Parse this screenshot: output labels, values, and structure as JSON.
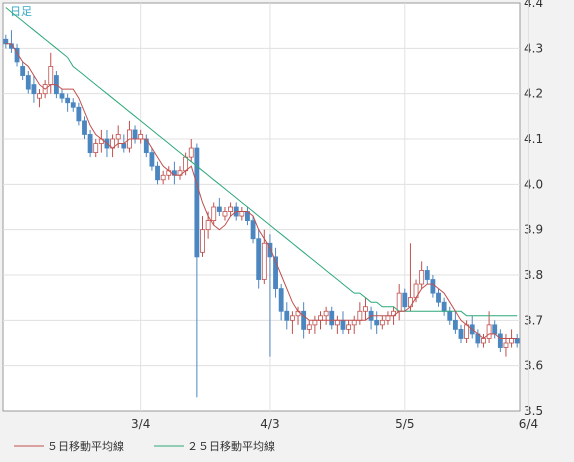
{
  "chart_data": {
    "type": "candlestick",
    "period_label": "日足",
    "ylim": [
      3.5,
      4.4
    ],
    "y_ticks": [
      "4.4",
      "4.3",
      "4.2",
      "4.1",
      "4.0",
      "3.9",
      "3.8",
      "3.7",
      "3.6",
      "3.5"
    ],
    "x_ticks": [
      {
        "label": "3/4",
        "index": 24
      },
      {
        "label": "4/3",
        "index": 47
      },
      {
        "label": "5/5",
        "index": 71
      },
      {
        "label": "6/4",
        "index": 93
      }
    ],
    "grid": true,
    "legend_position": "bottom",
    "colors": {
      "up": "#ffffff",
      "down": "#4b86c0",
      "up_border": "#c0504d",
      "ma5": "#c0504d",
      "ma25": "#2ea878"
    },
    "series": [
      {
        "name": "５日移動平均線",
        "color": "#c0504d"
      },
      {
        "name": "２５日移動平均線",
        "color": "#2ea878"
      }
    ],
    "candles": [
      [
        4.32,
        4.33,
        4.3,
        4.31
      ],
      [
        4.31,
        4.34,
        4.29,
        4.3
      ],
      [
        4.3,
        4.31,
        4.26,
        4.27
      ],
      [
        4.26,
        4.27,
        4.23,
        4.24
      ],
      [
        4.24,
        4.25,
        4.2,
        4.21
      ],
      [
        4.22,
        4.24,
        4.18,
        4.2
      ],
      [
        4.19,
        4.21,
        4.17,
        4.2
      ],
      [
        4.2,
        4.23,
        4.19,
        4.22
      ],
      [
        4.22,
        4.29,
        4.2,
        4.26
      ],
      [
        4.24,
        4.25,
        4.19,
        4.2
      ],
      [
        4.2,
        4.21,
        4.18,
        4.19
      ],
      [
        4.19,
        4.2,
        4.16,
        4.18
      ],
      [
        4.18,
        4.19,
        4.16,
        4.17
      ],
      [
        4.17,
        4.18,
        4.13,
        4.14
      ],
      [
        4.14,
        4.15,
        4.1,
        4.11
      ],
      [
        4.11,
        4.12,
        4.06,
        4.07
      ],
      [
        4.07,
        4.1,
        4.06,
        4.09
      ],
      [
        4.09,
        4.12,
        4.07,
        4.1
      ],
      [
        4.1,
        4.12,
        4.06,
        4.08
      ],
      [
        4.08,
        4.11,
        4.06,
        4.1
      ],
      [
        4.1,
        4.13,
        4.08,
        4.11
      ],
      [
        4.09,
        4.11,
        4.07,
        4.08
      ],
      [
        4.08,
        4.14,
        4.07,
        4.12
      ],
      [
        4.12,
        4.13,
        4.09,
        4.1
      ],
      [
        4.1,
        4.12,
        4.09,
        4.11
      ],
      [
        4.1,
        4.11,
        4.06,
        4.07
      ],
      [
        4.07,
        4.08,
        4.03,
        4.04
      ],
      [
        4.04,
        4.05,
        4.0,
        4.01
      ],
      [
        4.01,
        4.03,
        4.0,
        4.02
      ],
      [
        4.02,
        4.04,
        4.01,
        4.03
      ],
      [
        4.03,
        4.05,
        4.0,
        4.02
      ],
      [
        4.02,
        4.04,
        4.01,
        4.03
      ],
      [
        4.03,
        4.07,
        4.02,
        4.06
      ],
      [
        4.06,
        4.1,
        4.05,
        4.08
      ],
      [
        4.08,
        4.09,
        3.53,
        3.84
      ],
      [
        3.85,
        3.93,
        3.84,
        3.9
      ],
      [
        3.9,
        3.94,
        3.88,
        3.92
      ],
      [
        3.92,
        3.96,
        3.91,
        3.95
      ],
      [
        3.95,
        3.97,
        3.93,
        3.94
      ],
      [
        3.93,
        3.95,
        3.92,
        3.94
      ],
      [
        3.94,
        3.96,
        3.93,
        3.95
      ],
      [
        3.95,
        3.96,
        3.92,
        3.93
      ],
      [
        3.93,
        3.95,
        3.92,
        3.94
      ],
      [
        3.94,
        3.95,
        3.91,
        3.92
      ],
      [
        3.92,
        3.93,
        3.87,
        3.88
      ],
      [
        3.88,
        3.9,
        3.77,
        3.79
      ],
      [
        3.79,
        3.9,
        3.78,
        3.87
      ],
      [
        3.87,
        3.89,
        3.62,
        3.84
      ],
      [
        3.84,
        3.86,
        3.75,
        3.77
      ],
      [
        3.77,
        3.78,
        3.7,
        3.72
      ],
      [
        3.72,
        3.74,
        3.68,
        3.7
      ],
      [
        3.7,
        3.72,
        3.67,
        3.71
      ],
      [
        3.71,
        3.73,
        3.69,
        3.72
      ],
      [
        3.72,
        3.74,
        3.66,
        3.68
      ],
      [
        3.68,
        3.7,
        3.67,
        3.69
      ],
      [
        3.69,
        3.71,
        3.67,
        3.7
      ],
      [
        3.7,
        3.72,
        3.68,
        3.71
      ],
      [
        3.71,
        3.73,
        3.69,
        3.72
      ],
      [
        3.72,
        3.73,
        3.68,
        3.69
      ],
      [
        3.69,
        3.71,
        3.67,
        3.7
      ],
      [
        3.7,
        3.72,
        3.67,
        3.68
      ],
      [
        3.68,
        3.7,
        3.67,
        3.69
      ],
      [
        3.69,
        3.71,
        3.67,
        3.7
      ],
      [
        3.7,
        3.74,
        3.69,
        3.72
      ],
      [
        3.72,
        3.75,
        3.7,
        3.73
      ],
      [
        3.72,
        3.73,
        3.68,
        3.7
      ],
      [
        3.7,
        3.72,
        3.67,
        3.69
      ],
      [
        3.69,
        3.71,
        3.68,
        3.7
      ],
      [
        3.7,
        3.72,
        3.69,
        3.71
      ],
      [
        3.71,
        3.73,
        3.69,
        3.72
      ],
      [
        3.72,
        3.78,
        3.7,
        3.76
      ],
      [
        3.76,
        3.77,
        3.72,
        3.73
      ],
      [
        3.73,
        3.87,
        3.72,
        3.75
      ],
      [
        3.75,
        3.79,
        3.74,
        3.78
      ],
      [
        3.78,
        3.83,
        3.77,
        3.81
      ],
      [
        3.81,
        3.82,
        3.78,
        3.79
      ],
      [
        3.79,
        3.8,
        3.75,
        3.76
      ],
      [
        3.76,
        3.77,
        3.73,
        3.74
      ],
      [
        3.74,
        3.75,
        3.71,
        3.72
      ],
      [
        3.72,
        3.73,
        3.69,
        3.7
      ],
      [
        3.7,
        3.72,
        3.67,
        3.68
      ],
      [
        3.68,
        3.69,
        3.65,
        3.66
      ],
      [
        3.66,
        3.7,
        3.65,
        3.69
      ],
      [
        3.69,
        3.71,
        3.66,
        3.67
      ],
      [
        3.67,
        3.68,
        3.64,
        3.65
      ],
      [
        3.65,
        3.67,
        3.64,
        3.66
      ],
      [
        3.66,
        3.72,
        3.65,
        3.69
      ],
      [
        3.69,
        3.7,
        3.66,
        3.67
      ],
      [
        3.67,
        3.68,
        3.63,
        3.64
      ],
      [
        3.64,
        3.67,
        3.62,
        3.65
      ],
      [
        3.65,
        3.68,
        3.64,
        3.66
      ],
      [
        3.66,
        3.67,
        3.64,
        3.65
      ]
    ],
    "ma5": [
      4.31,
      4.31,
      4.29,
      4.27,
      4.26,
      4.24,
      4.22,
      4.21,
      4.22,
      4.22,
      4.21,
      4.21,
      4.21,
      4.19,
      4.16,
      4.13,
      4.11,
      4.1,
      4.09,
      4.08,
      4.09,
      4.09,
      4.1,
      4.1,
      4.1,
      4.1,
      4.08,
      4.06,
      4.04,
      4.03,
      4.02,
      4.02,
      4.03,
      4.04,
      4.0,
      3.96,
      3.93,
      3.91,
      3.9,
      3.91,
      3.93,
      3.94,
      3.94,
      3.94,
      3.93,
      3.9,
      3.88,
      3.86,
      3.83,
      3.8,
      3.77,
      3.74,
      3.72,
      3.71,
      3.7,
      3.7,
      3.7,
      3.7,
      3.7,
      3.7,
      3.7,
      3.7,
      3.7,
      3.7,
      3.7,
      3.71,
      3.71,
      3.71,
      3.71,
      3.71,
      3.72,
      3.72,
      3.73,
      3.75,
      3.77,
      3.78,
      3.78,
      3.77,
      3.76,
      3.74,
      3.72,
      3.7,
      3.69,
      3.68,
      3.67,
      3.66,
      3.67,
      3.67,
      3.66,
      3.66,
      3.66,
      3.66
    ],
    "ma25": [
      4.39,
      4.38,
      4.37,
      4.36,
      4.35,
      4.34,
      4.33,
      4.32,
      4.31,
      4.3,
      4.29,
      4.28,
      4.26,
      4.25,
      4.24,
      4.23,
      4.22,
      4.21,
      4.2,
      4.19,
      4.18,
      4.17,
      4.16,
      4.15,
      4.14,
      4.13,
      4.12,
      4.11,
      4.1,
      4.09,
      4.08,
      4.07,
      4.06,
      4.05,
      4.04,
      4.03,
      4.02,
      4.01,
      4.0,
      3.99,
      3.98,
      3.97,
      3.96,
      3.95,
      3.94,
      3.93,
      3.92,
      3.91,
      3.9,
      3.89,
      3.88,
      3.87,
      3.86,
      3.85,
      3.84,
      3.83,
      3.82,
      3.81,
      3.8,
      3.79,
      3.78,
      3.77,
      3.76,
      3.76,
      3.75,
      3.74,
      3.74,
      3.73,
      3.73,
      3.73,
      3.72,
      3.72,
      3.72,
      3.72,
      3.72,
      3.72,
      3.72,
      3.72,
      3.72,
      3.72,
      3.72,
      3.72,
      3.71,
      3.71,
      3.71,
      3.71,
      3.71,
      3.71,
      3.71,
      3.71,
      3.71,
      3.71
    ]
  }
}
